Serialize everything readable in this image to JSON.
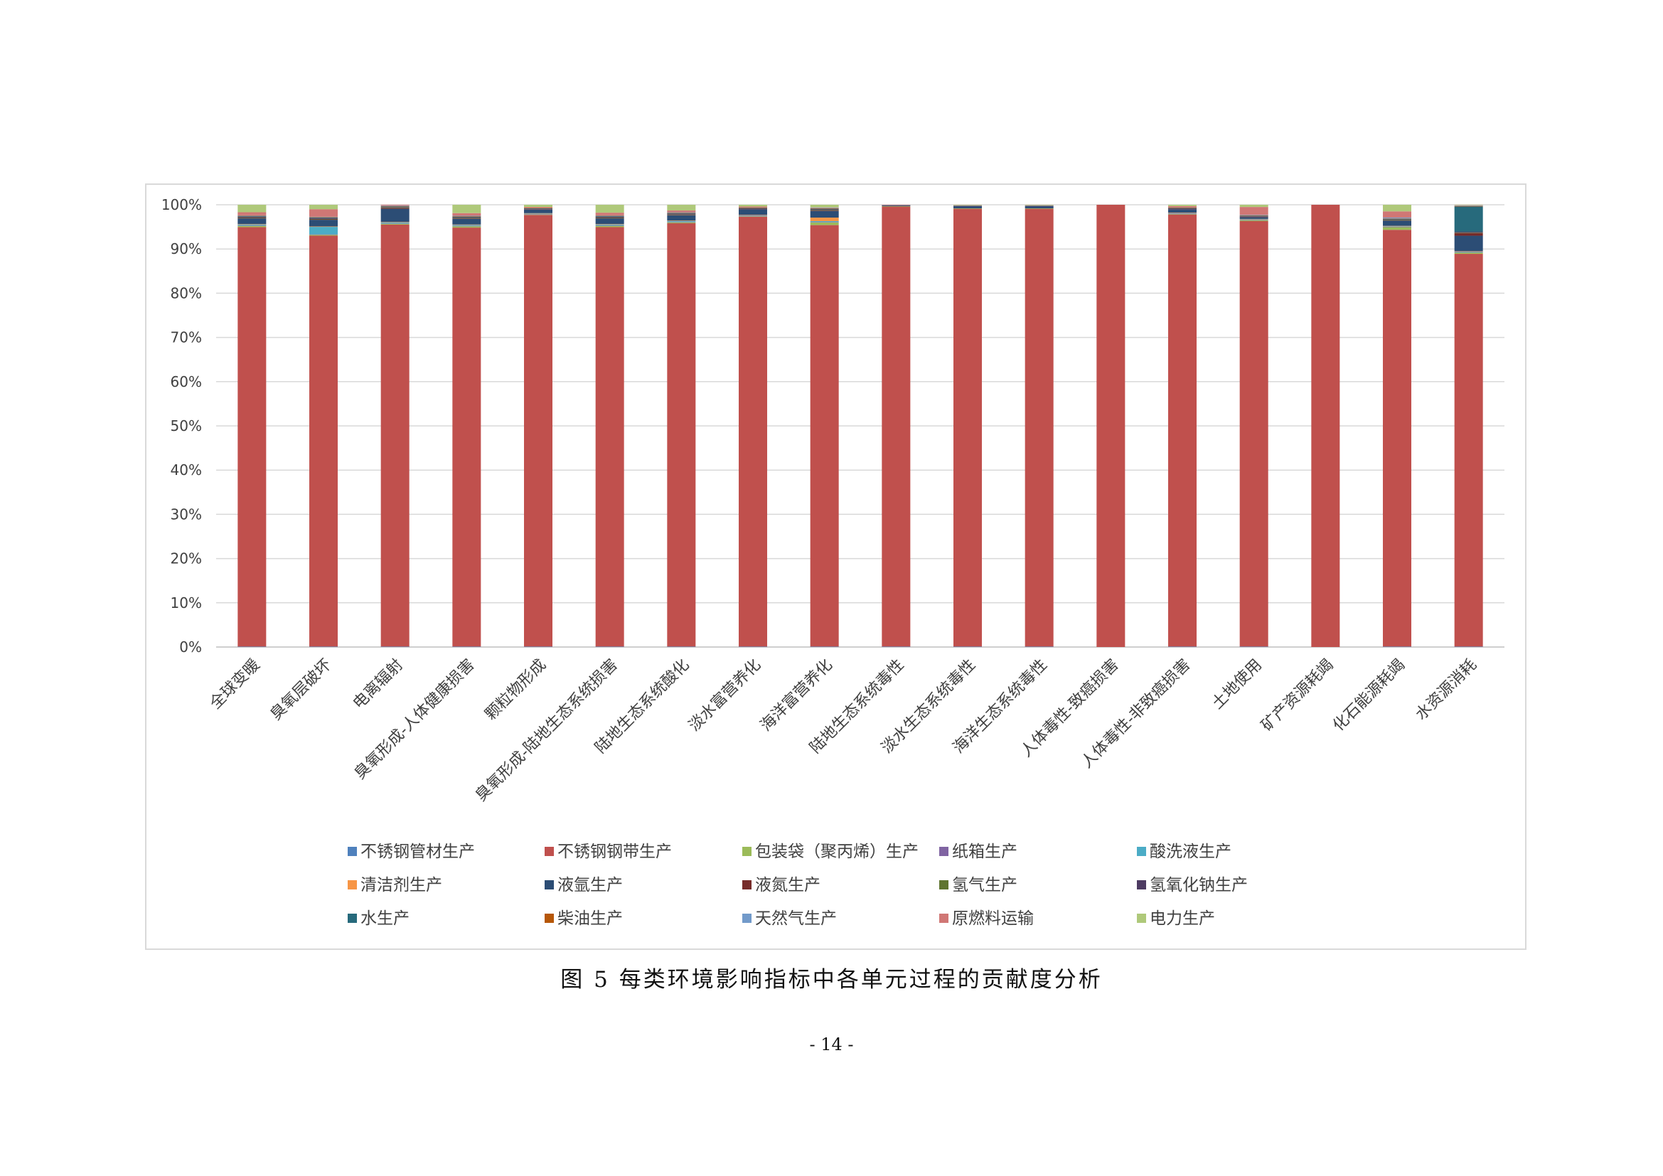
{
  "caption": "图 5  每类环境影响指标中各单元过程的贡献度分析",
  "page_number": "- 14 -",
  "chart_data": {
    "type": "bar",
    "stacked": "percent",
    "grid": true,
    "legend_position": "bottom",
    "ylim": [
      0,
      100
    ],
    "y_ticks": [
      "0%",
      "10%",
      "20%",
      "30%",
      "40%",
      "50%",
      "60%",
      "70%",
      "80%",
      "90%",
      "100%"
    ],
    "categories": [
      "全球变暖",
      "臭氧层破坏",
      "电离辐射",
      "臭氧形成-人体健康损害",
      "颗粒物形成",
      "臭氧形成-陆地生态系统损害",
      "陆地生态系统酸化",
      "淡水富营养化",
      "海洋富营养化",
      "陆地生态系统毒性",
      "淡水生态系统毒性",
      "海洋生态系统毒性",
      "人体毒性-致癌损害",
      "人体毒性-非致癌损害",
      "土地使用",
      "矿产资源耗竭",
      "化石能源耗竭",
      "水资源消耗"
    ],
    "series": [
      {
        "name": "不锈钢管材生产",
        "color": "#4f81bd",
        "values": [
          0.1,
          0.1,
          0.1,
          0.1,
          0.1,
          0.1,
          0.1,
          0.1,
          0.1,
          0.1,
          0.1,
          0.1,
          0,
          0.1,
          0.1,
          0,
          0.1,
          0.1
        ]
      },
      {
        "name": "不锈钢钢带生产",
        "color": "#c0504d",
        "values": [
          95.4,
          93.0,
          95.5,
          95.5,
          97.8,
          95.5,
          96.2,
          97.5,
          95.3,
          99.4,
          99.0,
          99.0,
          100,
          97.8,
          96.3,
          100,
          94.8,
          88.8
        ]
      },
      {
        "name": "包装袋（聚丙烯）生产",
        "color": "#9bbb59",
        "values": [
          0.3,
          0.2,
          0.2,
          0.3,
          0.1,
          0.3,
          0.2,
          0.1,
          0.6,
          0.1,
          0.1,
          0.1,
          0,
          0.1,
          0.2,
          0,
          0.6,
          0.3
        ]
      },
      {
        "name": "纸箱生产",
        "color": "#8064a2",
        "values": [
          0.1,
          0.1,
          0.1,
          0.1,
          0.1,
          0.1,
          0.1,
          0.1,
          0.1,
          0,
          0,
          0,
          0,
          0.1,
          0.1,
          0,
          0.1,
          0.1
        ]
      },
      {
        "name": "酸洗液生产",
        "color": "#4bacc6",
        "values": [
          0.2,
          1.7,
          0.2,
          0.2,
          0.1,
          0.2,
          0.2,
          0.1,
          0.2,
          0,
          0,
          0,
          0,
          0.1,
          0.1,
          0,
          0.1,
          0.1
        ]
      },
      {
        "name": "清洁剂生产",
        "color": "#f79646",
        "values": [
          0.1,
          0.1,
          0.1,
          0.1,
          0.1,
          0.1,
          0.1,
          0.1,
          0.8,
          0,
          0,
          0,
          0,
          0.1,
          0.1,
          0,
          0.1,
          0.1
        ]
      },
      {
        "name": "液氩生产",
        "color": "#2c4d75",
        "values": [
          1.3,
          1.5,
          3.0,
          1.3,
          0.8,
          1.3,
          1.2,
          1.3,
          1.5,
          0.2,
          0.4,
          0.4,
          0,
          0.8,
          0.4,
          0,
          1.2,
          3.5
        ]
      },
      {
        "name": "液氮生产",
        "color": "#772c2a",
        "values": [
          0.1,
          0.1,
          0.2,
          0.1,
          0.1,
          0.1,
          0.1,
          0.1,
          0.1,
          0,
          0,
          0,
          0,
          0.1,
          0.1,
          0,
          0.1,
          0.6
        ]
      },
      {
        "name": "氢气生产",
        "color": "#5f7530",
        "values": [
          0.1,
          0.1,
          0.1,
          0.1,
          0,
          0.1,
          0.1,
          0,
          0.1,
          0,
          0,
          0,
          0,
          0,
          0,
          0,
          0.1,
          0.1
        ]
      },
      {
        "name": "氢氧化钠生产",
        "color": "#4d3b62",
        "values": [
          0.2,
          0.2,
          0.1,
          0.2,
          0.1,
          0.2,
          0.2,
          0.1,
          0.2,
          0,
          0.1,
          0.1,
          0,
          0.1,
          0.1,
          0,
          0.1,
          0.2
        ]
      },
      {
        "name": "水生产",
        "color": "#276a7c",
        "values": [
          0.1,
          0.1,
          0.1,
          0.1,
          0.1,
          0.1,
          0.1,
          0.1,
          0.1,
          0,
          0.1,
          0.1,
          0,
          0.1,
          0.1,
          0,
          0.1,
          5.7
        ]
      },
      {
        "name": "柴油生产",
        "color": "#b65708",
        "values": [
          0.1,
          0.1,
          0.1,
          0.1,
          0.1,
          0.1,
          0.1,
          0.1,
          0.1,
          0,
          0,
          0,
          0,
          0.1,
          0.1,
          0,
          0.1,
          0.1
        ]
      },
      {
        "name": "天然气生产",
        "color": "#729aca",
        "values": [
          0.1,
          0.1,
          0.1,
          0.1,
          0,
          0.1,
          0.1,
          0,
          0.1,
          0,
          0,
          0,
          0,
          0,
          0.1,
          0,
          0.2,
          0.1
        ]
      },
      {
        "name": "原燃料运输",
        "color": "#d07775",
        "values": [
          0.7,
          1.7,
          0.2,
          0.6,
          0.2,
          0.6,
          0.4,
          0.2,
          0.1,
          0.1,
          0.1,
          0.1,
          0,
          0.3,
          1.8,
          0,
          1.4,
          0.1
        ]
      },
      {
        "name": "电力生产",
        "color": "#afc97a",
        "values": [
          1.7,
          1.0,
          0,
          1.9,
          0.5,
          1.8,
          1.3,
          0.4,
          0.6,
          0,
          0.1,
          0.1,
          0,
          0.3,
          0.5,
          0,
          1.5,
          0.1
        ]
      }
    ]
  }
}
